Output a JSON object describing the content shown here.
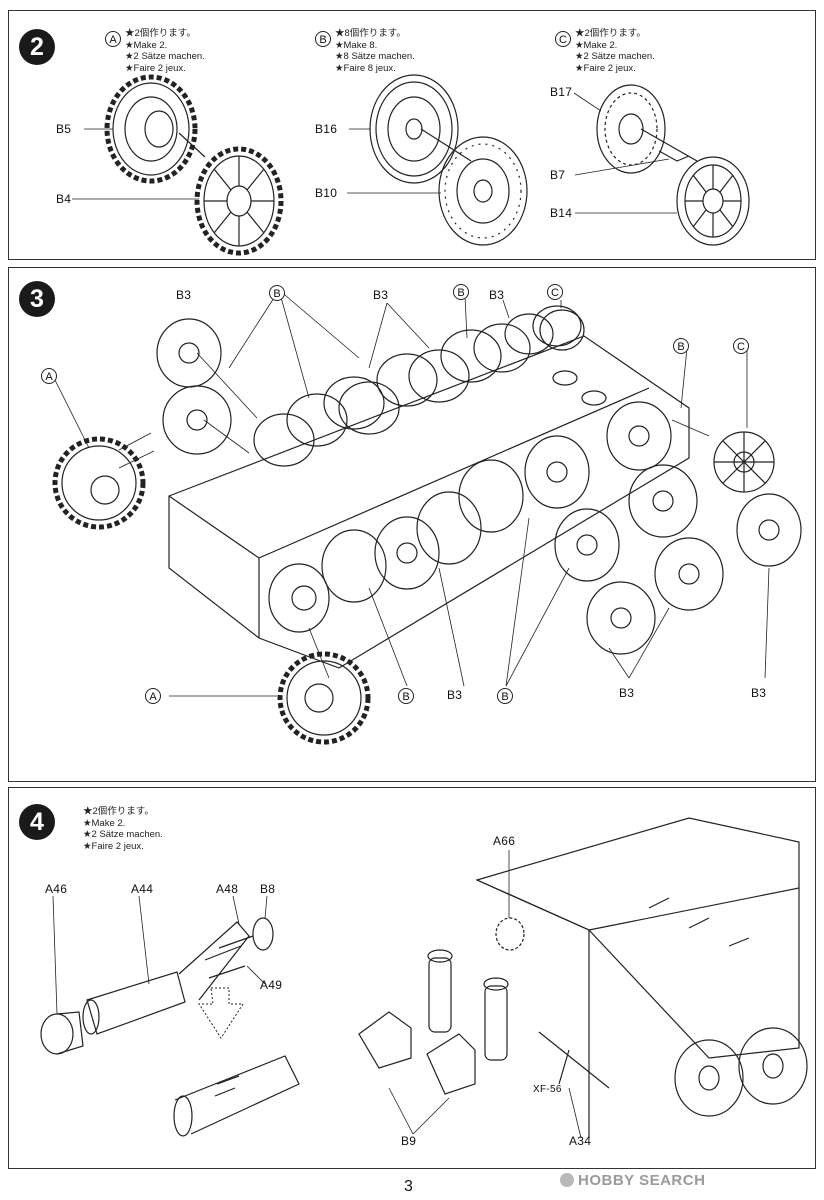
{
  "steps": [
    {
      "number": "2",
      "notes": [
        {
          "circle": "A",
          "lines": [
            "★2個作ります。",
            "★Make 2.",
            "★2 Sätze machen.",
            "★Faire 2 jeux."
          ]
        },
        {
          "circle": "B",
          "lines": [
            "★8個作ります。",
            "★Make 8.",
            "★8 Sätze machen.",
            "★Faire 8 jeux."
          ]
        },
        {
          "circle": "C",
          "lines": [
            "★2個作ります。",
            "★Make 2.",
            "★2 Sätze machen.",
            "★Faire 2 jeux."
          ]
        }
      ],
      "parts": {
        "b5": "B5",
        "b4": "B4",
        "b16": "B16",
        "b10": "B10",
        "b17": "B17",
        "b7": "B7",
        "b14": "B14"
      }
    },
    {
      "number": "3",
      "labels": {
        "b3_a": "B3",
        "b3_b": "B3",
        "b3_c": "B3",
        "b3_d": "B3",
        "b3_e": "B3",
        "b3_f": "B3",
        "circ_b1": "B",
        "circ_b2": "B",
        "circ_b3": "B",
        "circ_b4": "B",
        "circ_b5": "B",
        "circ_c1": "C",
        "circ_c2": "C",
        "circ_a1": "A",
        "circ_a2": "A"
      }
    },
    {
      "number": "4",
      "notes": [
        "★2個作ります。",
        "★Make 2.",
        "★2 Sätze machen.",
        "★Faire 2 jeux."
      ],
      "parts": {
        "a46": "A46",
        "a44": "A44",
        "a48": "A48",
        "b8": "B8",
        "a49": "A49",
        "a66": "A66",
        "xf56": "XF-56",
        "b9": "B9",
        "a34": "A34"
      }
    }
  ],
  "page_number": "3",
  "watermark": "HOBBY SEARCH"
}
